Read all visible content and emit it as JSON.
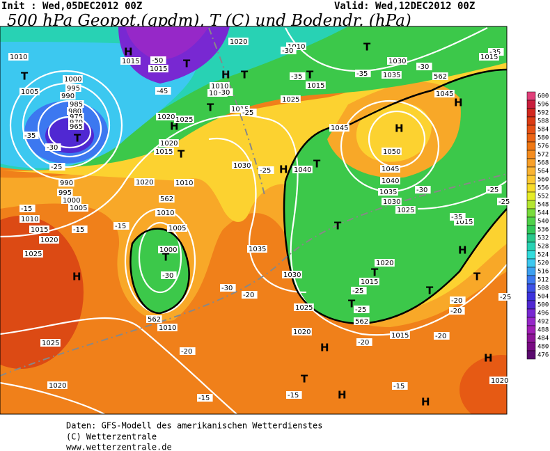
{
  "header": {
    "init": "Init : Wed,05DEC2012 00Z",
    "valid": "Valid: Wed,12DEC2012 00Z",
    "title": "500 hPa Geopot.(gpdm), T (C) und Bodendr. (hPa)"
  },
  "footer": [
    "Daten: GFS-Modell des amerikanischen Wetterdienstes",
    "(C) Wetterzentrale",
    "www.wetterzentrale.de"
  ],
  "colorbar": {
    "levels": [
      600,
      596,
      592,
      588,
      584,
      580,
      576,
      572,
      568,
      564,
      560,
      556,
      552,
      548,
      544,
      540,
      536,
      532,
      528,
      524,
      520,
      516,
      512,
      508,
      504,
      500,
      496,
      492,
      488,
      484,
      480,
      476
    ],
    "colors": [
      "#e0407a",
      "#c81e3c",
      "#d2281e",
      "#dc3c14",
      "#e65014",
      "#ec6414",
      "#f07814",
      "#f48c1e",
      "#f8a028",
      "#fab432",
      "#fcc832",
      "#f8dc28",
      "#e6ec28",
      "#b4e632",
      "#78dc3c",
      "#50d24a",
      "#32c85a",
      "#28c88c",
      "#28d2b4",
      "#32dcdc",
      "#3cc8f0",
      "#3ca0f0",
      "#3c78f0",
      "#3c50e6",
      "#3c32dc",
      "#5028d2",
      "#7828d2",
      "#9628c8",
      "#a01eb4",
      "#8c1496",
      "#780a82",
      "#5a0a6e"
    ]
  },
  "map_labels": [
    "H",
    "1015",
    "-50",
    "1015",
    "T",
    "H",
    "T",
    "1020",
    "1010",
    "-30",
    "T",
    "1030",
    "1035",
    "-35",
    "T",
    "1015",
    "-35",
    "-30",
    "562",
    "1045",
    "H",
    "-35",
    "T",
    "1010",
    "1005",
    "1000",
    "995",
    "990",
    "985",
    "980",
    "975",
    "970",
    "965",
    "T",
    "-30",
    "-35",
    "-25",
    "990",
    "995",
    "1000",
    "1005",
    "1010",
    "1015",
    "1020",
    "-15",
    "-15",
    "-15",
    "1020",
    "1010",
    "T",
    "H",
    "1025",
    "1020",
    "1015",
    "1020",
    "-45",
    "1010",
    "1005",
    "-30",
    "T",
    "1015",
    "-25",
    "1025",
    "H",
    "1050",
    "1045",
    "1040",
    "1035",
    "1030",
    "1025",
    "-30",
    "-25",
    "-25",
    "1045",
    "H",
    "1030",
    "-25",
    "1040",
    "T",
    "T",
    "1020",
    "T",
    "1015",
    "-25",
    "T",
    "-25",
    "562",
    "1015",
    "-20",
    "T",
    "-20",
    "-20",
    "H",
    "T",
    "-25",
    "1015",
    "-35",
    "562",
    "1010",
    "1005",
    "1000",
    "T",
    "-30",
    "562",
    "1010",
    "-20",
    "1035",
    "1030",
    "-30",
    "-20",
    "1025",
    "1020",
    "H",
    "T",
    "-15",
    "H",
    "-15",
    "H",
    "H",
    "1020",
    "1025",
    "H",
    "1025",
    "1020",
    "-15",
    "1015",
    "-20"
  ]
}
